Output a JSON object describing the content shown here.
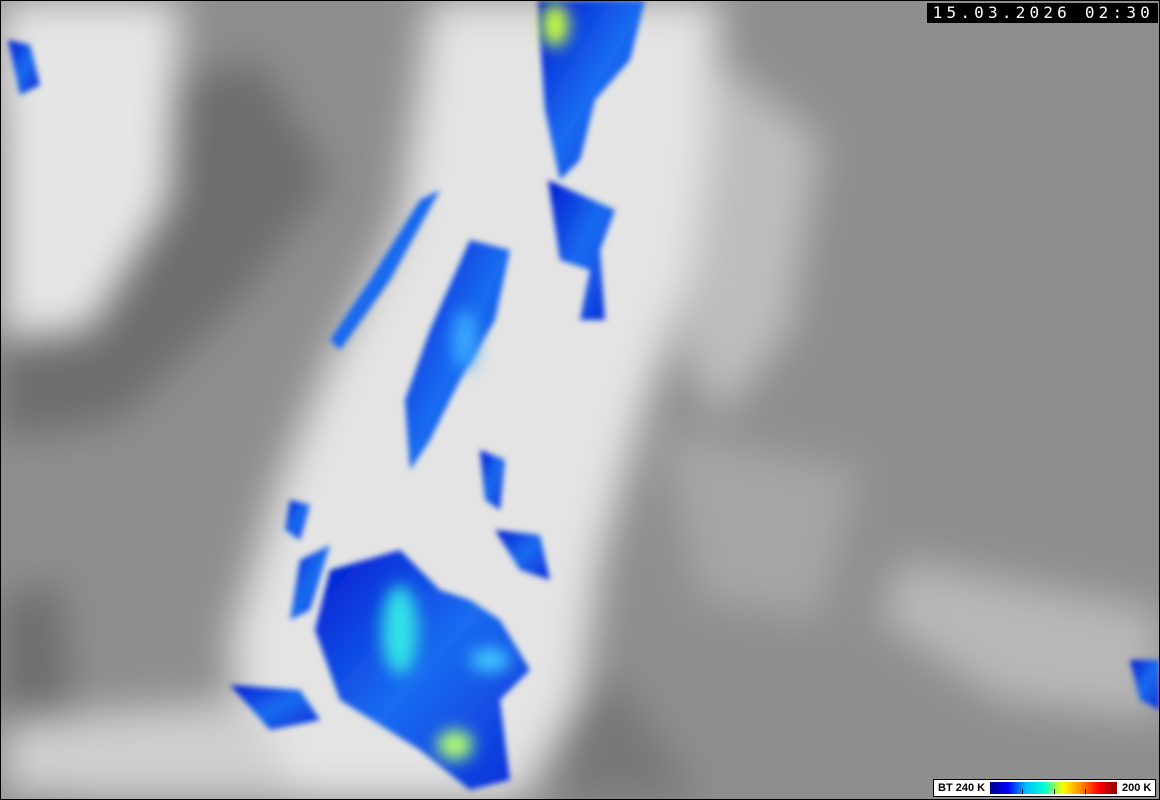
{
  "image": {
    "timestamp": "15.03.2026 02:30",
    "legend": {
      "low_label": "BT 240 K",
      "high_label": "200 K",
      "colors": [
        "#00008b",
        "#0000ff",
        "#00bfff",
        "#00ffd0",
        "#ffff00",
        "#ff8c00",
        "#ff0000",
        "#8b0000"
      ]
    },
    "colors": {
      "land_gray": "#8c8c8c",
      "sea_gray": "#6e6e6e",
      "cloud_white": "#f2f2f2",
      "cold_top_blue": "#0a2bd6"
    }
  }
}
